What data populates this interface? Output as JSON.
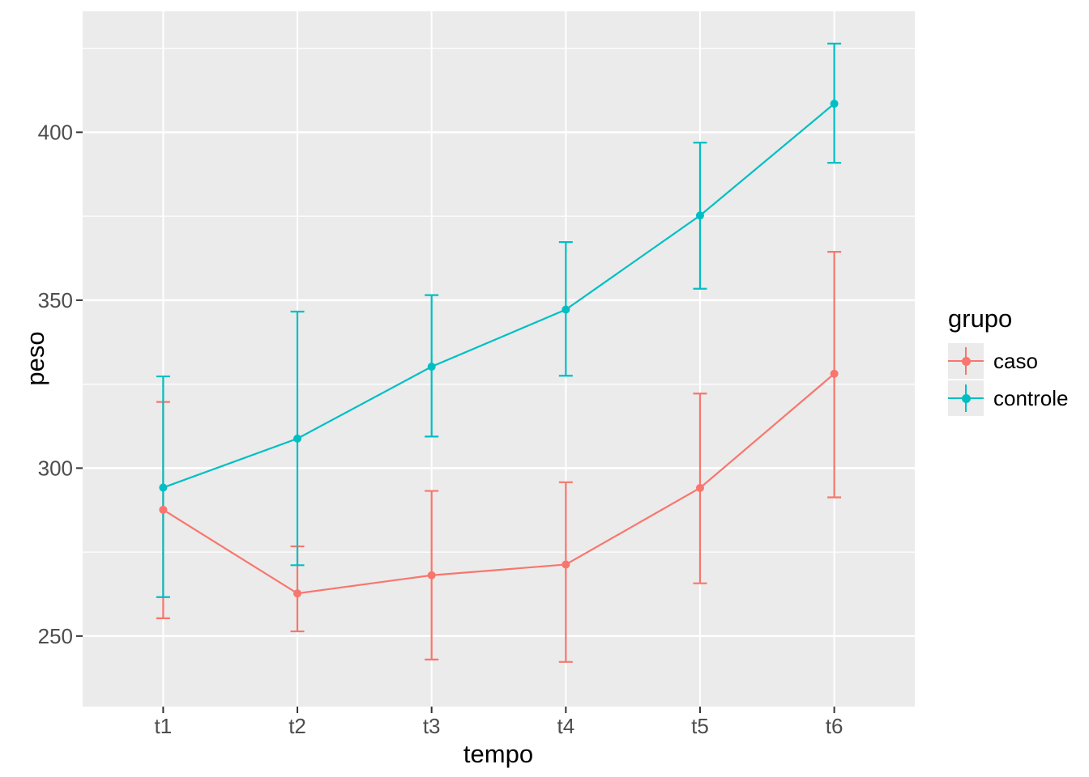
{
  "figure": {
    "background": "#FFFFFF",
    "panel_background": "#EBEBEB",
    "grid_color": "#FFFFFF",
    "tick_color": "#333333",
    "tick_label_color": "#4D4D4D"
  },
  "chart_data": {
    "type": "line",
    "title": "",
    "xlabel": "tempo",
    "ylabel": "peso",
    "categories": [
      "t1",
      "t2",
      "t3",
      "t4",
      "t5",
      "t6"
    ],
    "y_axis": {
      "ticks": [
        250,
        300,
        350,
        400
      ],
      "minor_ticks": [
        275,
        325,
        375,
        425
      ],
      "range": [
        229,
        436
      ]
    },
    "grid": "on",
    "legend": {
      "title": "grupo",
      "position": "right"
    },
    "series": [
      {
        "name": "caso",
        "color": "#F8766D",
        "values": [
          287.6,
          262.7,
          268.1,
          271.3,
          294.1,
          328.1
        ],
        "error_low": [
          255.3,
          251.4,
          243.0,
          242.3,
          265.7,
          291.3
        ],
        "error_high": [
          319.7,
          276.7,
          293.2,
          295.8,
          322.2,
          364.4
        ]
      },
      {
        "name": "controle",
        "color": "#00BFC4",
        "values": [
          294.2,
          308.8,
          330.2,
          347.2,
          375.2,
          408.5
        ],
        "error_low": [
          261.6,
          271.1,
          309.4,
          327.5,
          353.4,
          390.9
        ],
        "error_high": [
          327.3,
          346.6,
          351.5,
          367.3,
          396.9,
          426.4
        ]
      }
    ]
  }
}
